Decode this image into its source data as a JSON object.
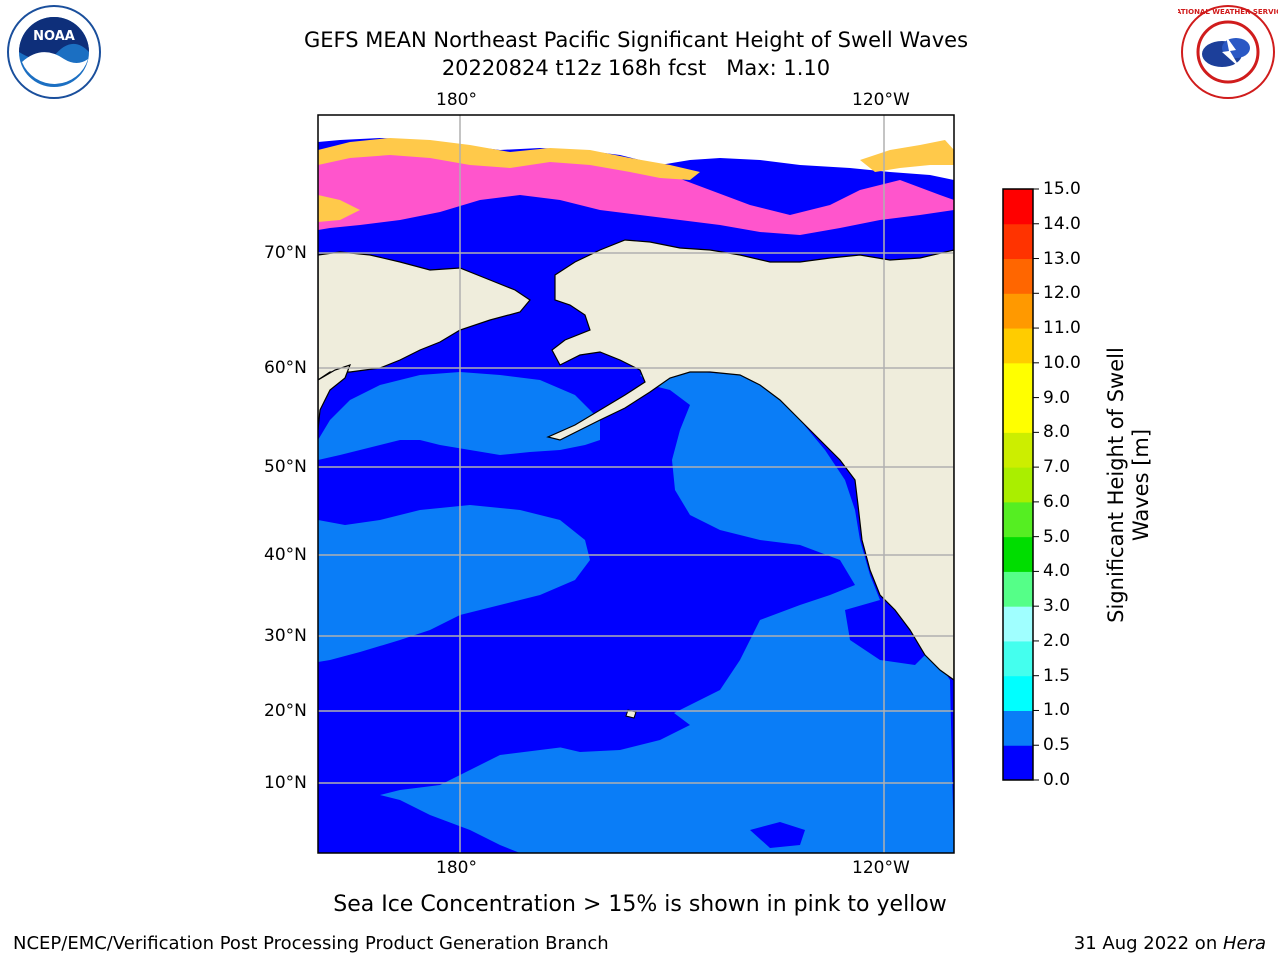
{
  "header": {
    "title_line1": "GEFS MEAN Northeast Pacific Significant Height of Swell Waves",
    "title_line2": "20220824 t12z 168h fcst   Max: 1.10",
    "logo_left_text": "NOAA",
    "logo_right_text": "NATIONAL WEATHER SERVICE"
  },
  "map": {
    "lon_labels": [
      "180°",
      "120°W"
    ],
    "lat_labels": [
      "70°N",
      "60°N",
      "50°N",
      "40°N",
      "30°N",
      "20°N",
      "10°N"
    ],
    "colors": {
      "land": "#efeddc",
      "ocean_low": "#0000ff",
      "ocean_mid": "#0a7df7",
      "ice_pink": "#ff55cc",
      "ice_yellow": "#ffc94a",
      "gridline": "#b0b0b0"
    }
  },
  "colorbar": {
    "label_line1": "Significant Height of Swell",
    "label_line2": "Waves [m]",
    "ticks": [
      "0.0",
      "0.5",
      "1.0",
      "1.5",
      "2.0",
      "3.0",
      "4.0",
      "5.0",
      "6.0",
      "7.0",
      "8.0",
      "9.0",
      "10.0",
      "11.0",
      "12.0",
      "13.0",
      "14.0",
      "15.0"
    ],
    "colors": [
      "#0000ff",
      "#0a7df7",
      "#00ffff",
      "#44ffee",
      "#a0ffff",
      "#55ff88",
      "#00dd00",
      "#55ee22",
      "#aaee00",
      "#ccee00",
      "#ffff00",
      "#ffff00",
      "#ffcc00",
      "#ff9900",
      "#ff6600",
      "#ff3300",
      "#ff0000"
    ]
  },
  "footer": {
    "note": "Sea Ice Concentration > 15% is shown in pink to yellow",
    "credit": "NCEP/EMC/Verification Post Processing Product Generation Branch",
    "date_prefix": "31 Aug 2022 on ",
    "date_host": "Hera"
  }
}
